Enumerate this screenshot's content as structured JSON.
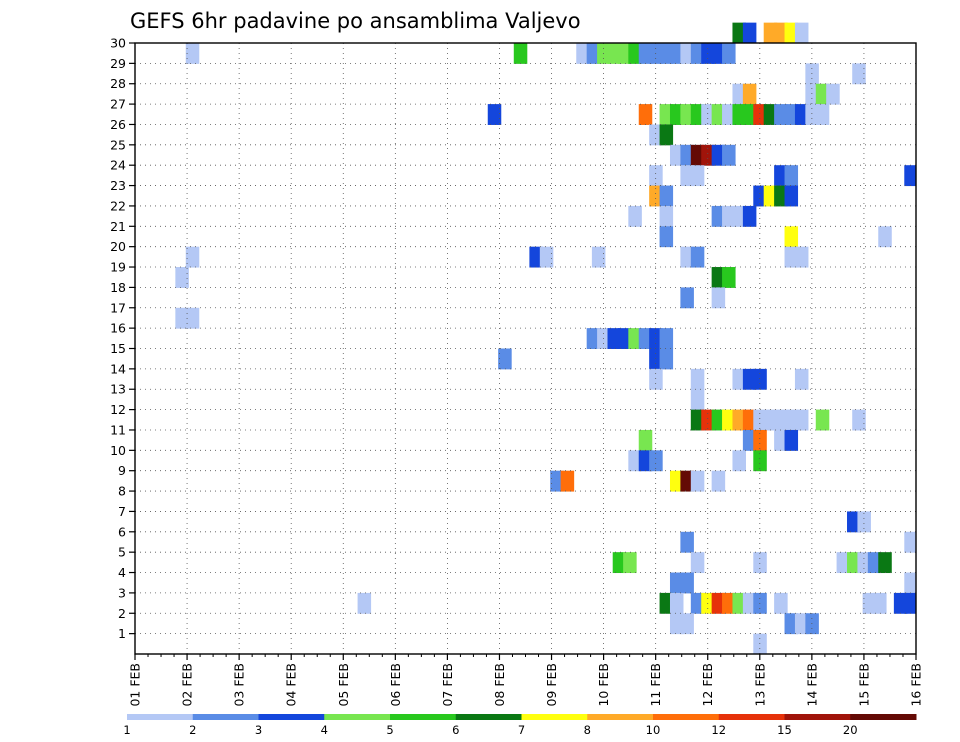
{
  "chart_data": {
    "type": "heatmap",
    "title": "GEFS 6hr padavine po ansamblima Valjevo",
    "xlabel": "",
    "ylabel": "",
    "x_tick_labels": [
      "01 FEB",
      "02 FEB",
      "03 FEB",
      "04 FEB",
      "05 FEB",
      "06 FEB",
      "07 FEB",
      "08 FEB",
      "09 FEB",
      "10 FEB",
      "11 FEB",
      "12 FEB",
      "13 FEB",
      "14 FEB",
      "15 FEB",
      "16 FEB"
    ],
    "y_tick_labels": [
      "1",
      "2",
      "3",
      "4",
      "5",
      "6",
      "7",
      "8",
      "9",
      "10",
      "11",
      "12",
      "13",
      "14",
      "15",
      "16",
      "17",
      "18",
      "19",
      "20",
      "21",
      "22",
      "23",
      "24",
      "25",
      "26",
      "27",
      "28",
      "29",
      "30"
    ],
    "xlim_days": [
      1,
      16
    ],
    "ylim": [
      0,
      30
    ],
    "grid": true,
    "colorbar": {
      "labels": [
        "1",
        "2",
        "3",
        "4",
        "5",
        "6",
        "7",
        "8",
        "10",
        "12",
        "15",
        "20"
      ],
      "colors": [
        "#b4c8f5",
        "#5a8ce6",
        "#1446dc",
        "#78e650",
        "#28c81e",
        "#0a7814",
        "#ffff0f",
        "#ffaa28",
        "#ff6e0a",
        "#e6320a",
        "#a0140a",
        "#640a05"
      ]
    },
    "cells": [
      [
        2.1,
        29,
        1
      ],
      [
        8.4,
        29,
        5
      ],
      [
        9.6,
        29,
        1
      ],
      [
        9.8,
        29,
        2
      ],
      [
        10.0,
        29,
        4
      ],
      [
        10.2,
        29,
        4
      ],
      [
        10.4,
        29,
        4
      ],
      [
        10.6,
        29,
        5
      ],
      [
        10.8,
        29,
        2
      ],
      [
        11.0,
        29,
        2
      ],
      [
        11.2,
        29,
        2
      ],
      [
        11.4,
        29,
        2
      ],
      [
        11.6,
        29,
        1
      ],
      [
        11.8,
        29,
        2
      ],
      [
        12.0,
        29,
        3
      ],
      [
        12.2,
        29,
        3
      ],
      [
        12.4,
        29,
        2
      ],
      [
        12.6,
        30,
        6
      ],
      [
        12.8,
        30,
        3
      ],
      [
        13.2,
        30,
        8
      ],
      [
        13.4,
        30,
        8
      ],
      [
        13.6,
        30,
        7
      ],
      [
        13.8,
        30,
        1
      ],
      [
        14.0,
        28,
        1
      ],
      [
        14.9,
        28,
        1
      ],
      [
        12.6,
        27,
        1
      ],
      [
        12.8,
        27,
        8
      ],
      [
        14.0,
        27,
        1
      ],
      [
        14.2,
        27,
        4
      ],
      [
        14.4,
        27,
        1
      ],
      [
        7.9,
        26,
        3
      ],
      [
        10.8,
        26,
        9
      ],
      [
        11.2,
        26,
        4
      ],
      [
        11.4,
        26,
        5
      ],
      [
        11.6,
        26,
        4
      ],
      [
        11.8,
        26,
        5
      ],
      [
        12.0,
        26,
        1
      ],
      [
        12.2,
        26,
        4
      ],
      [
        12.4,
        26,
        1
      ],
      [
        12.6,
        26,
        5
      ],
      [
        12.8,
        26,
        5
      ],
      [
        13.0,
        26,
        10
      ],
      [
        13.2,
        26,
        6
      ],
      [
        13.4,
        26,
        2
      ],
      [
        13.6,
        26,
        2
      ],
      [
        13.8,
        26,
        3
      ],
      [
        14.0,
        26,
        1
      ],
      [
        14.2,
        26,
        1
      ],
      [
        11.0,
        25,
        1
      ],
      [
        11.2,
        25,
        6
      ],
      [
        11.4,
        24,
        1
      ],
      [
        11.6,
        24,
        2
      ],
      [
        11.8,
        24,
        12
      ],
      [
        12.0,
        24,
        11
      ],
      [
        12.2,
        24,
        3
      ],
      [
        12.4,
        24,
        2
      ],
      [
        11.0,
        23,
        1
      ],
      [
        11.6,
        23,
        1
      ],
      [
        11.8,
        23,
        1
      ],
      [
        13.4,
        23,
        3
      ],
      [
        13.6,
        23,
        2
      ],
      [
        15.9,
        23,
        3
      ],
      [
        13.0,
        22,
        3
      ],
      [
        13.2,
        22,
        7
      ],
      [
        13.4,
        22,
        6
      ],
      [
        13.6,
        22,
        3
      ],
      [
        11.0,
        22,
        8
      ],
      [
        11.2,
        22,
        2
      ],
      [
        10.6,
        21,
        1
      ],
      [
        11.2,
        21,
        1
      ],
      [
        12.2,
        21,
        2
      ],
      [
        12.4,
        21,
        1
      ],
      [
        12.6,
        21,
        1
      ],
      [
        12.8,
        21,
        3
      ],
      [
        11.2,
        20,
        2
      ],
      [
        13.6,
        20,
        7
      ],
      [
        15.4,
        20,
        1
      ],
      [
        2.1,
        19,
        1
      ],
      [
        8.7,
        19,
        3
      ],
      [
        8.9,
        19,
        1
      ],
      [
        9.9,
        19,
        1
      ],
      [
        11.6,
        19,
        1
      ],
      [
        11.8,
        19,
        2
      ],
      [
        13.6,
        19,
        1
      ],
      [
        13.8,
        19,
        1
      ],
      [
        1.9,
        18,
        1
      ],
      [
        12.2,
        18,
        6
      ],
      [
        12.4,
        18,
        5
      ],
      [
        11.6,
        17,
        2
      ],
      [
        12.2,
        17,
        1
      ],
      [
        1.9,
        16,
        1
      ],
      [
        2.1,
        16,
        1
      ],
      [
        9.8,
        15,
        2
      ],
      [
        10.0,
        15,
        1
      ],
      [
        10.2,
        15,
        3
      ],
      [
        10.4,
        15,
        3
      ],
      [
        10.6,
        15,
        4
      ],
      [
        10.8,
        15,
        2
      ],
      [
        11.0,
        15,
        3
      ],
      [
        11.2,
        15,
        2
      ],
      [
        8.1,
        14,
        2
      ],
      [
        11.0,
        14,
        3
      ],
      [
        11.2,
        14,
        2
      ],
      [
        11.0,
        13,
        1
      ],
      [
        11.8,
        13,
        1
      ],
      [
        12.6,
        13,
        1
      ],
      [
        12.8,
        13,
        3
      ],
      [
        13.0,
        13,
        3
      ],
      [
        13.8,
        13,
        1
      ],
      [
        11.8,
        12,
        1
      ],
      [
        11.8,
        11,
        6
      ],
      [
        12.0,
        11,
        10
      ],
      [
        12.2,
        11,
        5
      ],
      [
        12.4,
        11,
        7
      ],
      [
        12.6,
        11,
        8
      ],
      [
        12.8,
        11,
        9
      ],
      [
        13.0,
        11,
        1
      ],
      [
        13.2,
        11,
        1
      ],
      [
        13.4,
        11,
        1
      ],
      [
        13.6,
        11,
        1
      ],
      [
        13.8,
        11,
        1
      ],
      [
        14.2,
        11,
        4
      ],
      [
        14.9,
        11,
        1
      ],
      [
        10.8,
        10,
        4
      ],
      [
        12.8,
        10,
        2
      ],
      [
        13.0,
        10,
        9
      ],
      [
        13.4,
        10,
        1
      ],
      [
        13.6,
        10,
        3
      ],
      [
        10.6,
        9,
        1
      ],
      [
        10.8,
        9,
        3
      ],
      [
        11.0,
        9,
        2
      ],
      [
        12.6,
        9,
        1
      ],
      [
        13.0,
        9,
        5
      ],
      [
        9.1,
        8,
        2
      ],
      [
        9.3,
        8,
        9
      ],
      [
        11.4,
        8,
        7
      ],
      [
        11.6,
        8,
        12
      ],
      [
        11.8,
        8,
        1
      ],
      [
        12.2,
        8,
        1
      ],
      [
        14.8,
        6,
        3
      ],
      [
        15.0,
        6,
        1
      ],
      [
        11.6,
        5,
        2
      ],
      [
        15.9,
        5,
        1
      ],
      [
        10.3,
        4,
        5
      ],
      [
        10.5,
        4,
        4
      ],
      [
        11.8,
        4,
        1
      ],
      [
        13.0,
        4,
        1
      ],
      [
        14.6,
        4,
        1
      ],
      [
        14.8,
        4,
        4
      ],
      [
        15.0,
        4,
        1
      ],
      [
        15.2,
        4,
        2
      ],
      [
        15.4,
        4,
        6
      ],
      [
        11.4,
        3,
        2
      ],
      [
        11.6,
        3,
        2
      ],
      [
        15.9,
        3,
        1
      ],
      [
        5.4,
        2,
        1
      ],
      [
        11.2,
        2,
        6
      ],
      [
        11.4,
        2,
        1
      ],
      [
        11.8,
        2,
        2
      ],
      [
        12.0,
        2,
        7
      ],
      [
        12.2,
        2,
        10
      ],
      [
        12.4,
        2,
        9
      ],
      [
        12.6,
        2,
        4
      ],
      [
        12.8,
        2,
        1
      ],
      [
        13.0,
        2,
        2
      ],
      [
        13.4,
        2,
        1
      ],
      [
        15.1,
        2,
        1
      ],
      [
        15.3,
        2,
        1
      ],
      [
        15.7,
        2,
        3
      ],
      [
        15.9,
        2,
        3
      ],
      [
        11.4,
        1,
        1
      ],
      [
        11.6,
        1,
        1
      ],
      [
        13.6,
        1,
        2
      ],
      [
        13.8,
        1,
        1
      ],
      [
        14.0,
        1,
        2
      ],
      [
        13.0,
        0,
        1
      ]
    ]
  }
}
